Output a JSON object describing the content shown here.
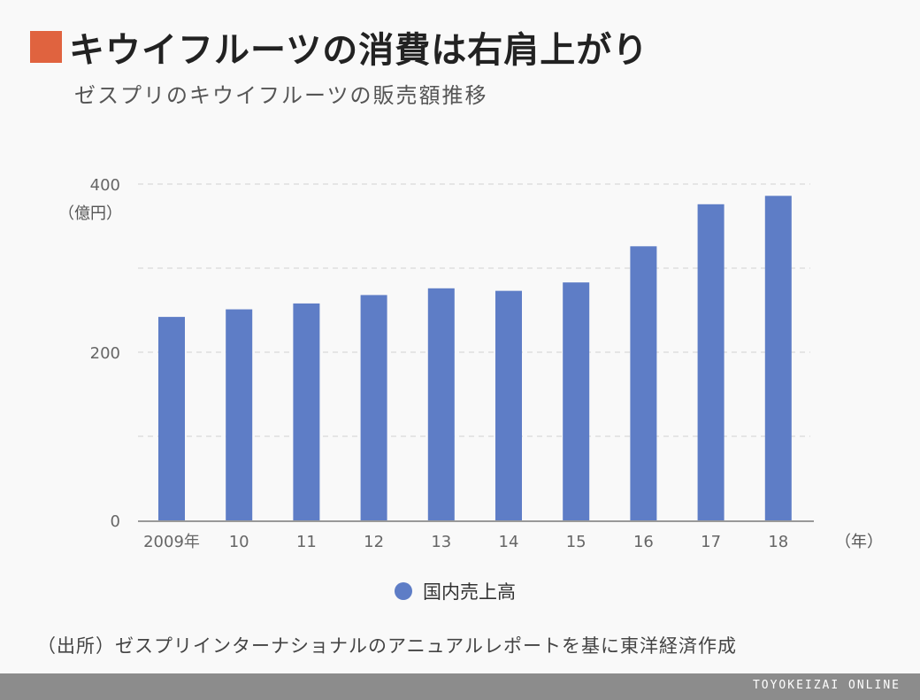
{
  "header": {
    "title": "キウイフルーツの消費は右肩上がり",
    "subtitle": "ゼスプリのキウイフルーツの販売額推移"
  },
  "chart_data": {
    "type": "bar",
    "categories": [
      "2009年",
      "10",
      "11",
      "12",
      "13",
      "14",
      "15",
      "16",
      "17",
      "18"
    ],
    "series": [
      {
        "name": "国内売上高",
        "values": [
          242,
          251,
          258,
          268,
          276,
          273,
          283,
          326,
          376,
          386
        ]
      }
    ],
    "y_ticks": [
      "400",
      "200",
      "0"
    ],
    "y_unit_label": "（億円）",
    "x_unit_label": "（年）",
    "ylim": [
      0,
      400
    ],
    "gridlines": [
      100,
      200,
      300,
      400
    ],
    "grid": true,
    "legend_position": "bottom-center",
    "colors": {
      "bar": "#5e7dc6",
      "accent": "#e0633f"
    }
  },
  "legend": {
    "label": "国内売上高"
  },
  "source": "（出所）ゼスプリインターナショナルのアニュアルレポートを基に東洋経済作成",
  "footer": {
    "brand": "TOYOKEIZAI ONLINE"
  }
}
